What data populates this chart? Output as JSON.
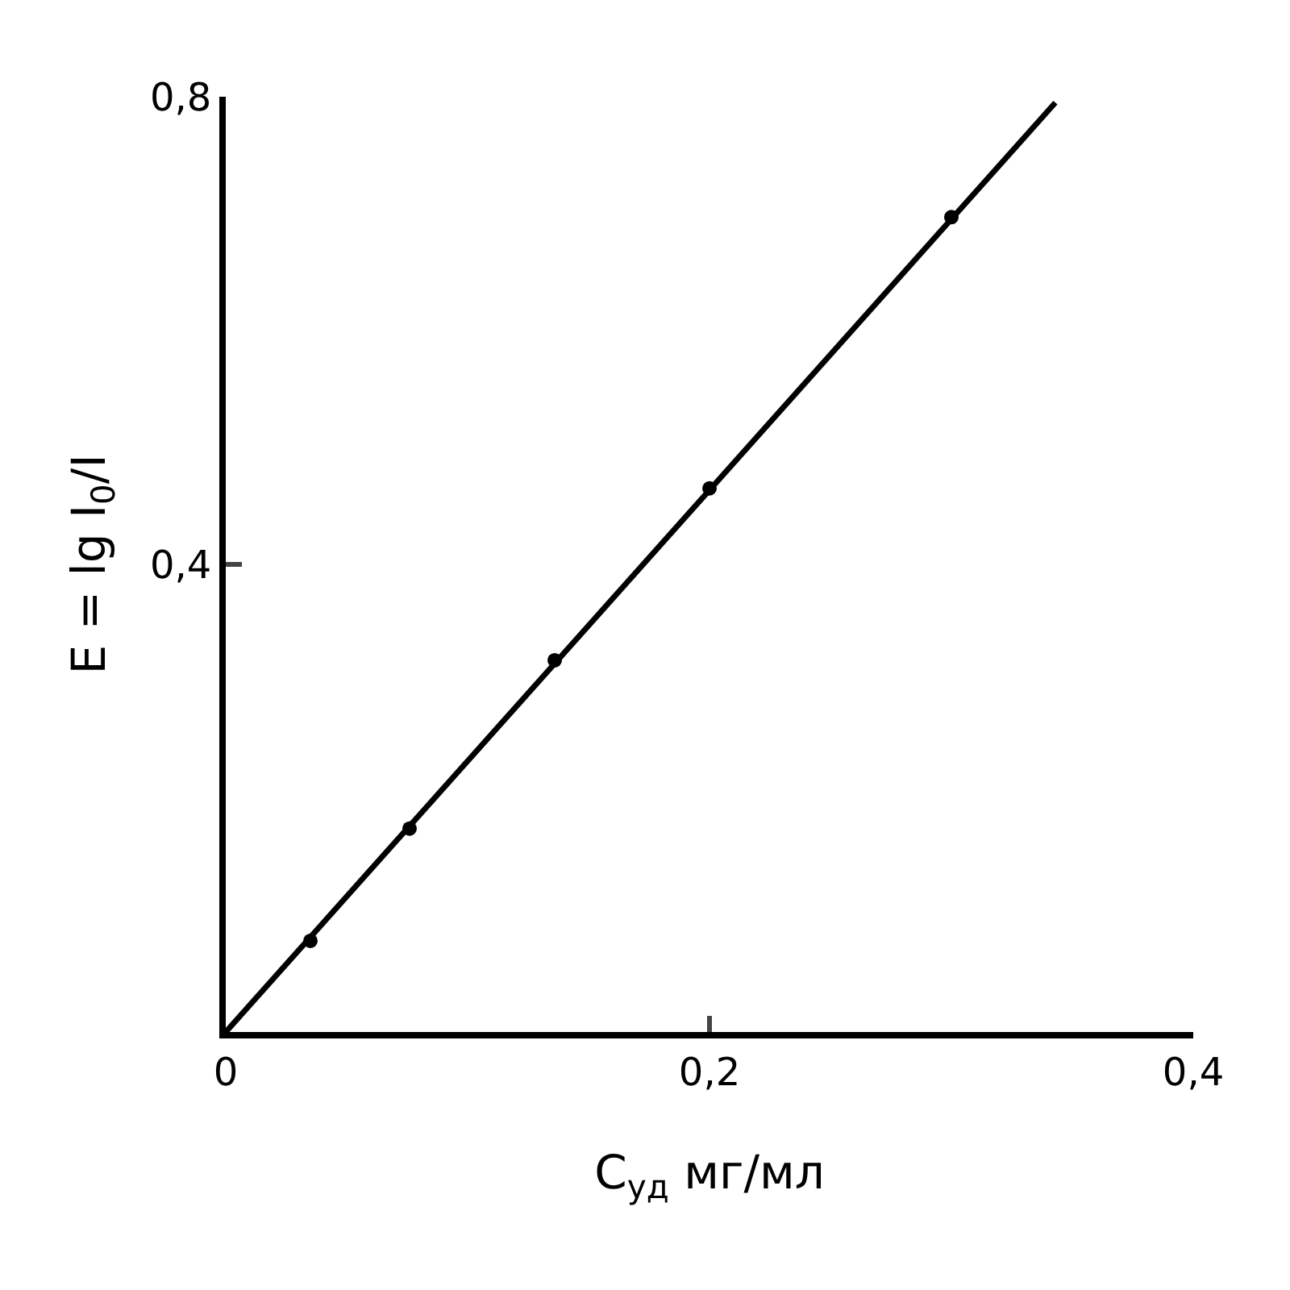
{
  "chart_data": {
    "type": "scatter",
    "xlabel": "C$_{уд}$ мг/мл",
    "ylabel": "E = lg I$_{0}$/I",
    "x": [
      0.035,
      0.076,
      0.136,
      0.2,
      0.3
    ],
    "series": [
      {
        "color": "#000000",
        "marker": "circle",
        "values": [
          0.078,
          0.174,
          0.318,
          0.465,
          0.697
        ]
      },
      {
        "type": "line",
        "color": "#000000",
        "marker": "none",
        "x": [
          0,
          0.343
        ],
        "values": [
          0,
          0.795
        ]
      }
    ],
    "xlim": [
      0,
      0.4
    ],
    "ylim": [
      0,
      0.8
    ],
    "xticks": [
      0,
      {
        "value": 0.2,
        "label": "0,2"
      },
      {
        "value": 0.4,
        "label": "0,4"
      }
    ],
    "yticks": [
      {
        "value": 0,
        "label": null
      },
      {
        "value": 0.4,
        "label": "0,4"
      },
      {
        "value": 0.8,
        "label": "0,8"
      }
    ],
    "legend": false
  }
}
